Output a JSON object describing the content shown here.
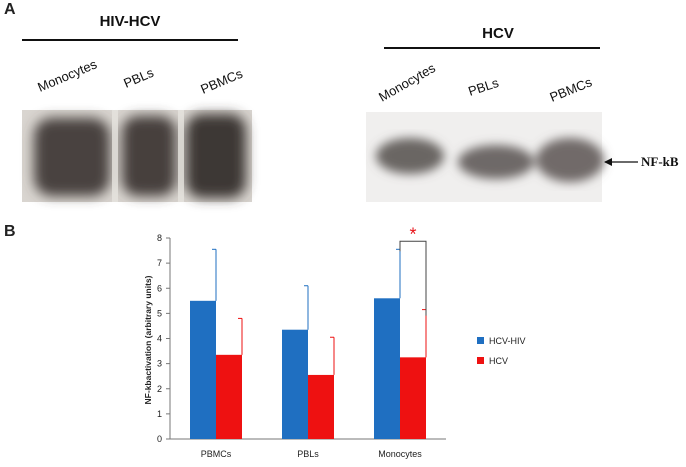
{
  "panel_a": {
    "label": "A",
    "left_group": "HIV-HCV",
    "right_group": "HCV",
    "lanes_left": [
      "Monocytes",
      "PBLs",
      "PBMCs"
    ],
    "lanes_right": [
      "Monocytes",
      "PBLs",
      "PBMCs"
    ],
    "band_label": "NF-kB"
  },
  "panel_b": {
    "label": "B"
  },
  "colors": {
    "hcv_hiv": "#1f6fc1",
    "hcv": "#ee1111",
    "star": "#e8141a"
  },
  "chart_data": {
    "type": "bar",
    "ylabel": "NF-kbactivation (arbitrary units)",
    "ylim": [
      0,
      8
    ],
    "yticks": [
      0,
      1,
      2,
      3,
      4,
      5,
      6,
      7,
      8
    ],
    "categories": [
      "PBMCs",
      "PBLs",
      "Monocytes"
    ],
    "series": [
      {
        "name": "HCV-HIV",
        "values": [
          5.5,
          4.35,
          5.6
        ],
        "error": [
          2.05,
          1.75,
          1.95
        ]
      },
      {
        "name": "HCV",
        "values": [
          3.35,
          2.55,
          3.25
        ],
        "error": [
          1.45,
          1.5,
          1.9
        ]
      }
    ],
    "annotation": {
      "text": "*",
      "between": [
        "HCV-HIV",
        "HCV"
      ],
      "category": "Monocytes"
    },
    "legend": "right"
  }
}
